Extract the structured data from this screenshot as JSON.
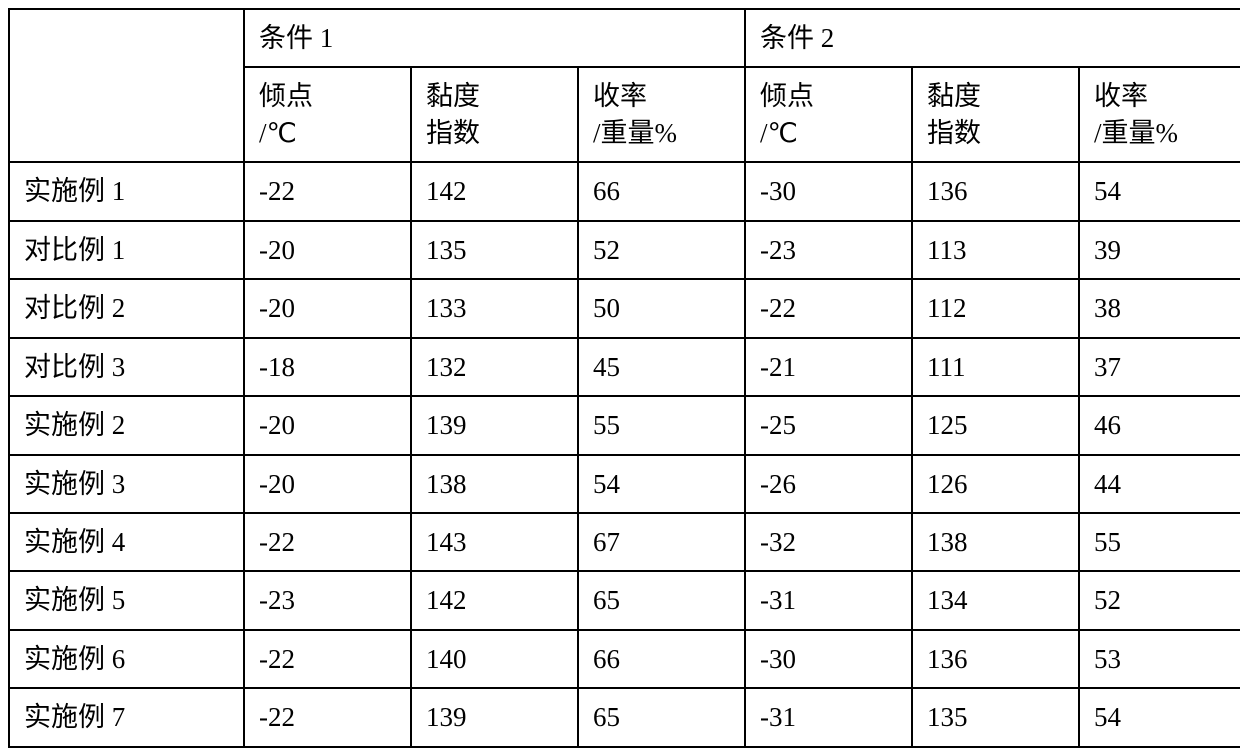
{
  "table": {
    "border_color": "#000000",
    "background_color": "#ffffff",
    "text_color": "#000000",
    "font_size_pt": 20,
    "header": {
      "blank": "",
      "cond1": "条件 1",
      "cond2": "条件 2",
      "sub": {
        "pour_l1": "倾点",
        "pour_l2": "/℃",
        "visc_l1": "黏度",
        "visc_l2": "指数",
        "yield_l1": "收率",
        "yield_l2": "/重量%"
      }
    },
    "rows": [
      {
        "label": "实施例 1",
        "c1_pour": "-22",
        "c1_visc": "142",
        "c1_yield": "66",
        "c2_pour": "-30",
        "c2_visc": "136",
        "c2_yield": "54"
      },
      {
        "label": "对比例 1",
        "c1_pour": "-20",
        "c1_visc": "135",
        "c1_yield": "52",
        "c2_pour": "-23",
        "c2_visc": "113",
        "c2_yield": "39"
      },
      {
        "label": "对比例 2",
        "c1_pour": "-20",
        "c1_visc": "133",
        "c1_yield": "50",
        "c2_pour": "-22",
        "c2_visc": "112",
        "c2_yield": "38"
      },
      {
        "label": "对比例 3",
        "c1_pour": "-18",
        "c1_visc": "132",
        "c1_yield": "45",
        "c2_pour": "-21",
        "c2_visc": "111",
        "c2_yield": "37"
      },
      {
        "label": "实施例 2",
        "c1_pour": "-20",
        "c1_visc": "139",
        "c1_yield": "55",
        "c2_pour": "-25",
        "c2_visc": "125",
        "c2_yield": "46"
      },
      {
        "label": "实施例 3",
        "c1_pour": "-20",
        "c1_visc": "138",
        "c1_yield": "54",
        "c2_pour": "-26",
        "c2_visc": "126",
        "c2_yield": "44"
      },
      {
        "label": "实施例 4",
        "c1_pour": "-22",
        "c1_visc": "143",
        "c1_yield": "67",
        "c2_pour": "-32",
        "c2_visc": "138",
        "c2_yield": "55"
      },
      {
        "label": "实施例 5",
        "c1_pour": "-23",
        "c1_visc": "142",
        "c1_yield": "65",
        "c2_pour": "-31",
        "c2_visc": "134",
        "c2_yield": "52"
      },
      {
        "label": "实施例 6",
        "c1_pour": "-22",
        "c1_visc": "140",
        "c1_yield": "66",
        "c2_pour": "-30",
        "c2_visc": "136",
        "c2_yield": "53"
      },
      {
        "label": "实施例 7",
        "c1_pour": "-22",
        "c1_visc": "139",
        "c1_yield": "65",
        "c2_pour": "-31",
        "c2_visc": "135",
        "c2_yield": "54"
      }
    ]
  }
}
